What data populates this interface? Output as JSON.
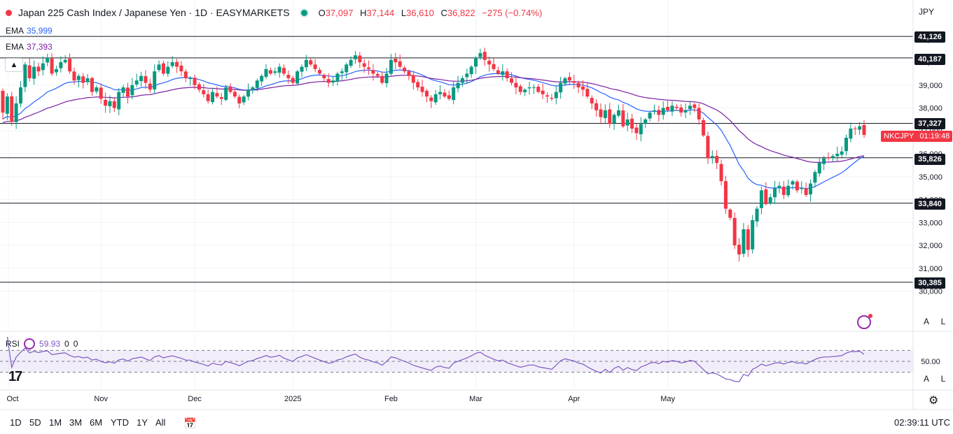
{
  "header": {
    "title": "Japan 225 Cash Index / Japanese Yen · 1D · EASYMARKETS",
    "open_label": "O",
    "open": "37,097",
    "high_label": "H",
    "high": "37,144",
    "low_label": "L",
    "low": "36,610",
    "close_label": "C",
    "close": "36,822",
    "change": "−275 (−0.74%)"
  },
  "indicators": {
    "ema1": {
      "label": "EMA",
      "value": "35,999",
      "color": "#2962ff"
    },
    "ema2": {
      "label": "EMA",
      "value": "37,393",
      "color": "#7b1fa2"
    },
    "rsi": {
      "label": "RSI",
      "value": "59.93",
      "extra1": "0",
      "extra2": "0"
    }
  },
  "currency": "JPY",
  "symbol_tag": {
    "symbol": "NKCJPY",
    "countdown": "01:19:48"
  },
  "level_labels": [
    "41,126",
    "40,187",
    "37,327",
    "35,826",
    "33,840",
    "30,385"
  ],
  "buttons": {
    "auto": "A",
    "log": "L",
    "collapse": "▲"
  },
  "ranges": [
    "1D",
    "5D",
    "1M",
    "3M",
    "6M",
    "YTD",
    "1Y",
    "All"
  ],
  "clock": "02:39:11 UTC",
  "chart_data": {
    "type": "candlestick",
    "price_ylim": [
      29500,
      42000
    ],
    "y_ticks": [
      30000,
      31000,
      32000,
      33000,
      34000,
      35000,
      36000,
      37000,
      38000,
      39000,
      40000,
      41000
    ],
    "y_tick_labels": [
      "30,000",
      "31,000",
      "32,000",
      "33,000",
      "34,000",
      "35,000",
      "36,000",
      "37,000",
      "38,000",
      "39,000",
      "40,000",
      "41,000"
    ],
    "horizontal_levels": [
      41126,
      40187,
      37327,
      35826,
      33840,
      30385
    ],
    "x_tick_labels": [
      "Oct",
      "Nov",
      "Dec",
      "2025",
      "Feb",
      "Mar",
      "Apr",
      "May"
    ],
    "closes": [
      37800,
      38500,
      37400,
      38200,
      38900,
      39900,
      39300,
      39800,
      39600,
      39950,
      40200,
      39500,
      39700,
      40000,
      40100,
      39600,
      39200,
      39400,
      39100,
      39300,
      38700,
      38900,
      38400,
      38100,
      38300,
      38000,
      38700,
      38900,
      38500,
      39000,
      39200,
      39400,
      39100,
      38800,
      39600,
      39900,
      39500,
      39800,
      40000,
      39800,
      39600,
      39300,
      39300,
      39000,
      38800,
      38600,
      38300,
      38700,
      38500,
      38400,
      38900,
      38700,
      38500,
      38200,
      38500,
      38800,
      38900,
      39200,
      39400,
      39700,
      39500,
      39600,
      39800,
      39500,
      39300,
      39100,
      39600,
      39800,
      40100,
      39900,
      39700,
      39500,
      39300,
      39100,
      39200,
      39500,
      39600,
      39900,
      40100,
      40300,
      40000,
      39800,
      39700,
      39500,
      39400,
      39100,
      39500,
      40100,
      40000,
      39800,
      39600,
      39400,
      39100,
      38900,
      38700,
      38500,
      38300,
      38600,
      38700,
      38500,
      38400,
      38900,
      39100,
      39300,
      39500,
      39800,
      40200,
      40400,
      40100,
      39900,
      39700,
      39500,
      39600,
      39300,
      39100,
      38900,
      38700,
      38800,
      38900,
      38900,
      38700,
      38600,
      38500,
      38400,
      38700,
      39100,
      39300,
      39200,
      39100,
      38900,
      38800,
      38500,
      38200,
      37900,
      37600,
      37900,
      37300,
      37700,
      37900,
      37200,
      37500,
      37100,
      36900,
      37300,
      37500,
      37800,
      37900,
      37700,
      38000,
      37900,
      38100,
      38000,
      37800,
      37900,
      38100,
      38000,
      37500,
      36800,
      35800,
      35900,
      35600,
      34800,
      33600,
      33200,
      32000,
      31600,
      32700,
      31800,
      33100,
      33600,
      34400,
      33800,
      34100,
      34500,
      34600,
      34200,
      34600,
      34800,
      34400,
      34500,
      34200,
      34700,
      35200,
      35600,
      35800,
      35800,
      35900,
      36000,
      36100,
      36700,
      37100,
      37100,
      37200,
      36822
    ],
    "ema_fast": {
      "name": "EMA",
      "start": 37500,
      "end": 35999
    },
    "ema_slow": {
      "name": "EMA",
      "start": 37350,
      "end": 37393
    },
    "rsi_ylim": [
      0,
      100
    ],
    "rsi_levels": [
      70,
      50,
      30
    ],
    "rsi_tick_labels": [
      "50.00"
    ]
  }
}
